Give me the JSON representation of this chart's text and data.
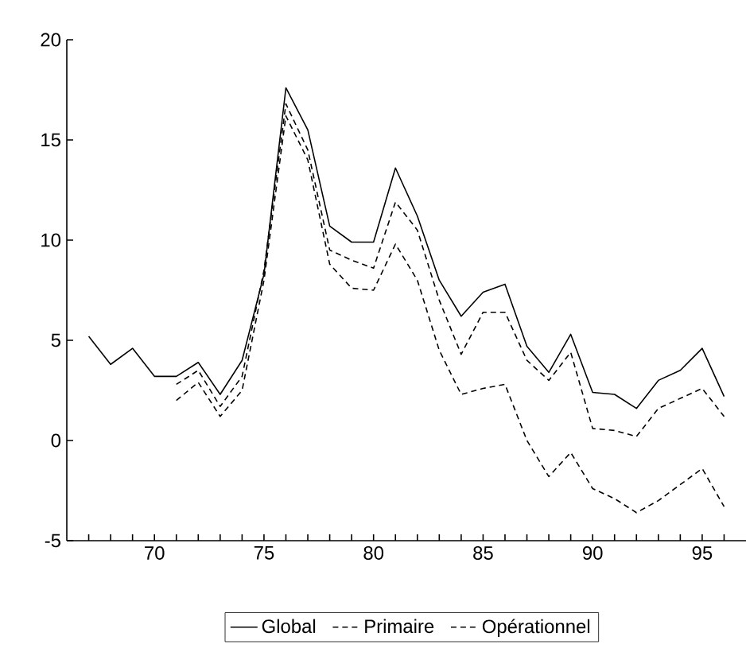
{
  "chart_data": {
    "type": "line",
    "x": [
      67,
      68,
      69,
      70,
      71,
      72,
      73,
      74,
      75,
      76,
      77,
      78,
      79,
      80,
      81,
      82,
      83,
      84,
      85,
      86,
      87,
      88,
      89,
      90,
      91,
      92,
      93,
      94,
      95,
      96
    ],
    "series": [
      {
        "name": "Global",
        "color": "#000000",
        "line_style": "solid",
        "values": [
          5.2,
          3.8,
          4.6,
          3.2,
          3.2,
          3.9,
          2.3,
          4.0,
          8.3,
          17.6,
          15.5,
          10.7,
          9.9,
          9.9,
          13.6,
          11.2,
          8.0,
          6.2,
          7.4,
          7.8,
          4.7,
          3.4,
          5.3,
          2.4,
          2.3,
          1.6,
          3.0,
          3.5,
          4.6,
          2.2
        ]
      },
      {
        "name": "Primaire",
        "color": "#000000",
        "line_style": "dashed",
        "values": [
          null,
          null,
          null,
          null,
          2.0,
          2.9,
          1.2,
          2.5,
          8.0,
          16.2,
          14.0,
          8.8,
          7.6,
          7.5,
          9.8,
          8.0,
          4.5,
          2.3,
          2.6,
          2.8,
          0.0,
          -1.8,
          -0.6,
          -2.4,
          -2.9,
          -3.6,
          -3.0,
          -2.2,
          -1.4,
          -3.3
        ]
      },
      {
        "name": "Opérationnel",
        "color": "#000000",
        "line_style": "dashed",
        "values": [
          null,
          null,
          null,
          null,
          2.8,
          3.5,
          1.7,
          3.2,
          8.5,
          16.8,
          14.5,
          9.5,
          9.0,
          8.6,
          11.9,
          10.5,
          7.0,
          4.3,
          6.4,
          6.4,
          4.0,
          3.0,
          4.4,
          0.6,
          0.5,
          0.2,
          1.6,
          2.1,
          2.6,
          1.2
        ]
      }
    ],
    "xlim": [
      66,
      97
    ],
    "ylim": [
      -5,
      20
    ],
    "xticks": [
      {
        "value": 67,
        "label": null
      },
      {
        "value": 68,
        "label": null
      },
      {
        "value": 69,
        "label": null
      },
      70,
      {
        "value": 71,
        "label": null
      },
      {
        "value": 72,
        "label": null
      },
      {
        "value": 73,
        "label": null
      },
      {
        "value": 74,
        "label": null
      },
      75,
      {
        "value": 76,
        "label": null
      },
      {
        "value": 77,
        "label": null
      },
      {
        "value": 78,
        "label": null
      },
      {
        "value": 79,
        "label": null
      },
      80,
      {
        "value": 81,
        "label": null
      },
      {
        "value": 82,
        "label": null
      },
      {
        "value": 83,
        "label": null
      },
      {
        "value": 84,
        "label": null
      },
      85,
      {
        "value": 86,
        "label": null
      },
      {
        "value": 87,
        "label": null
      },
      {
        "value": 88,
        "label": null
      },
      {
        "value": 89,
        "label": null
      },
      90,
      {
        "value": 91,
        "label": null
      },
      {
        "value": 92,
        "label": null
      },
      {
        "value": 93,
        "label": null
      },
      {
        "value": 94,
        "label": null
      },
      95,
      {
        "value": 96,
        "label": null
      }
    ],
    "yticks": [
      -5,
      0,
      5,
      10,
      15,
      20
    ],
    "grid": false,
    "legend": "bottom",
    "marker": "none"
  }
}
